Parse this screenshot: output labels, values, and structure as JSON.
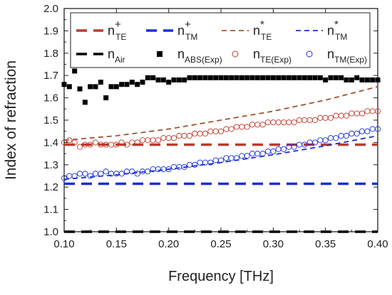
{
  "chart_data": {
    "type": "line",
    "xlabel": "Frequency [THz]",
    "ylabel": "Index of refraction",
    "xlim": [
      0.1,
      0.4
    ],
    "ylim": [
      1.0,
      2.0
    ],
    "xticks": [
      "0.10",
      "0.15",
      "0.20",
      "0.25",
      "0.30",
      "0.35",
      "0.40"
    ],
    "yticks": [
      "1.0",
      "1.1",
      "1.2",
      "1.3",
      "1.4",
      "1.5",
      "1.6",
      "1.7",
      "1.8",
      "1.9",
      "2.0"
    ],
    "grid": false,
    "legend_position": "top",
    "series": [
      {
        "name": "n_TE^+",
        "label": "n",
        "sub": "TE",
        "sup": "+",
        "style": "long-dash",
        "color": "#c0392b",
        "x": [
          0.1,
          0.4
        ],
        "y": [
          1.39,
          1.39
        ]
      },
      {
        "name": "n_TM^+",
        "label": "n",
        "sub": "TM",
        "sup": "+",
        "style": "long-dash",
        "color": "#1a2fd6",
        "x": [
          0.1,
          0.4
        ],
        "y": [
          1.215,
          1.215
        ]
      },
      {
        "name": "n_TE^*",
        "label": "n",
        "sub": "TE",
        "sup": "*",
        "style": "short-dash",
        "color": "#a0522d",
        "x": [
          0.1,
          0.15,
          0.2,
          0.25,
          0.3,
          0.35,
          0.4
        ],
        "y": [
          1.41,
          1.43,
          1.46,
          1.5,
          1.54,
          1.59,
          1.65
        ]
      },
      {
        "name": "n_TM^*",
        "label": "n",
        "sub": "TM",
        "sup": "*",
        "style": "short-dash",
        "color": "#1a2fd6",
        "x": [
          0.1,
          0.15,
          0.2,
          0.25,
          0.3,
          0.35,
          0.4
        ],
        "y": [
          1.235,
          1.255,
          1.28,
          1.31,
          1.345,
          1.385,
          1.43
        ]
      },
      {
        "name": "n_Air",
        "label": "n",
        "sub": "Air",
        "sup": "",
        "style": "long-dash",
        "color": "#000000",
        "x": [
          0.1,
          0.4
        ],
        "y": [
          1.0,
          1.0
        ]
      },
      {
        "name": "n_ABS(Exp)",
        "label": "n",
        "sub": "ABS(Exp)",
        "sup": "",
        "style": "square-marker",
        "color": "#000000",
        "x": [
          0.1,
          0.105,
          0.11,
          0.115,
          0.12,
          0.125,
          0.13,
          0.135,
          0.14,
          0.145,
          0.15,
          0.155,
          0.16,
          0.165,
          0.17,
          0.175,
          0.18,
          0.185,
          0.19,
          0.195,
          0.2,
          0.205,
          0.21,
          0.215,
          0.22,
          0.225,
          0.23,
          0.235,
          0.24,
          0.245,
          0.25,
          0.255,
          0.26,
          0.265,
          0.27,
          0.275,
          0.28,
          0.285,
          0.29,
          0.295,
          0.3,
          0.305,
          0.31,
          0.315,
          0.32,
          0.325,
          0.33,
          0.335,
          0.34,
          0.345,
          0.35,
          0.355,
          0.36,
          0.365,
          0.37,
          0.375,
          0.38,
          0.385,
          0.39,
          0.395,
          0.4
        ],
        "y": [
          1.66,
          1.65,
          1.72,
          1.64,
          1.58,
          1.65,
          1.65,
          1.67,
          1.6,
          1.65,
          1.65,
          1.66,
          1.66,
          1.67,
          1.66,
          1.67,
          1.69,
          1.69,
          1.68,
          1.68,
          1.67,
          1.68,
          1.68,
          1.68,
          1.69,
          1.69,
          1.69,
          1.69,
          1.69,
          1.69,
          1.69,
          1.69,
          1.69,
          1.69,
          1.69,
          1.69,
          1.69,
          1.69,
          1.69,
          1.69,
          1.69,
          1.69,
          1.69,
          1.69,
          1.69,
          1.69,
          1.69,
          1.69,
          1.69,
          1.69,
          1.68,
          1.69,
          1.69,
          1.69,
          1.68,
          1.68,
          1.69,
          1.68,
          1.68,
          1.68,
          1.68
        ]
      },
      {
        "name": "n_TE(Exp)",
        "label": "n",
        "sub": "TE(Exp)",
        "sup": "",
        "style": "circle-marker",
        "color": "#c0392b",
        "x": [
          0.1,
          0.105,
          0.11,
          0.115,
          0.12,
          0.125,
          0.13,
          0.135,
          0.14,
          0.145,
          0.15,
          0.155,
          0.16,
          0.165,
          0.17,
          0.175,
          0.18,
          0.185,
          0.19,
          0.195,
          0.2,
          0.205,
          0.21,
          0.215,
          0.22,
          0.225,
          0.23,
          0.235,
          0.24,
          0.245,
          0.25,
          0.255,
          0.26,
          0.265,
          0.27,
          0.275,
          0.28,
          0.285,
          0.29,
          0.295,
          0.3,
          0.305,
          0.31,
          0.315,
          0.32,
          0.325,
          0.33,
          0.335,
          0.34,
          0.345,
          0.35,
          0.355,
          0.36,
          0.365,
          0.37,
          0.375,
          0.38,
          0.385,
          0.39,
          0.395,
          0.4
        ],
        "y": [
          1.4,
          1.41,
          1.4,
          1.38,
          1.39,
          1.39,
          1.4,
          1.39,
          1.39,
          1.39,
          1.39,
          1.4,
          1.39,
          1.4,
          1.4,
          1.41,
          1.41,
          1.41,
          1.41,
          1.42,
          1.42,
          1.42,
          1.43,
          1.43,
          1.43,
          1.44,
          1.44,
          1.44,
          1.45,
          1.45,
          1.45,
          1.46,
          1.46,
          1.47,
          1.47,
          1.47,
          1.48,
          1.48,
          1.48,
          1.49,
          1.49,
          1.49,
          1.49,
          1.49,
          1.49,
          1.5,
          1.5,
          1.5,
          1.5,
          1.51,
          1.51,
          1.51,
          1.52,
          1.52,
          1.52,
          1.53,
          1.53,
          1.53,
          1.54,
          1.54,
          1.54
        ]
      },
      {
        "name": "n_TM(Exp)",
        "label": "n",
        "sub": "TM(Exp)",
        "sup": "",
        "style": "circle-marker",
        "color": "#1a2fd6",
        "x": [
          0.1,
          0.105,
          0.11,
          0.115,
          0.12,
          0.125,
          0.13,
          0.135,
          0.14,
          0.145,
          0.15,
          0.155,
          0.16,
          0.165,
          0.17,
          0.175,
          0.18,
          0.185,
          0.19,
          0.195,
          0.2,
          0.205,
          0.21,
          0.215,
          0.22,
          0.225,
          0.23,
          0.235,
          0.24,
          0.245,
          0.25,
          0.255,
          0.26,
          0.265,
          0.27,
          0.275,
          0.28,
          0.285,
          0.29,
          0.295,
          0.3,
          0.305,
          0.31,
          0.315,
          0.32,
          0.325,
          0.33,
          0.335,
          0.34,
          0.345,
          0.35,
          0.355,
          0.36,
          0.365,
          0.37,
          0.375,
          0.38,
          0.385,
          0.39,
          0.395,
          0.4
        ],
        "y": [
          1.24,
          1.25,
          1.25,
          1.26,
          1.26,
          1.25,
          1.26,
          1.26,
          1.27,
          1.26,
          1.26,
          1.26,
          1.27,
          1.27,
          1.26,
          1.27,
          1.27,
          1.28,
          1.28,
          1.28,
          1.28,
          1.29,
          1.29,
          1.29,
          1.3,
          1.3,
          1.31,
          1.31,
          1.31,
          1.32,
          1.32,
          1.33,
          1.33,
          1.33,
          1.34,
          1.34,
          1.35,
          1.35,
          1.35,
          1.36,
          1.36,
          1.37,
          1.37,
          1.38,
          1.38,
          1.39,
          1.39,
          1.4,
          1.4,
          1.41,
          1.41,
          1.42,
          1.42,
          1.43,
          1.43,
          1.44,
          1.44,
          1.45,
          1.45,
          1.46,
          1.46
        ]
      }
    ]
  }
}
